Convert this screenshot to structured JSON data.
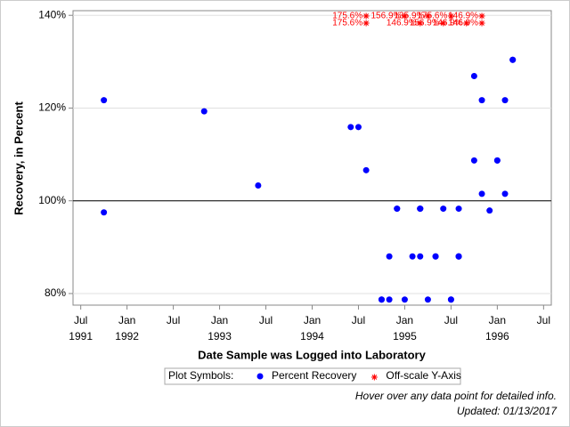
{
  "chart_data": {
    "type": "scatter",
    "ylabel": "Recovery, in Percent",
    "xlabel": "Date Sample was Logged into Laboratory",
    "xlim": [
      "1991-06",
      "1996-08"
    ],
    "xticks": [
      {
        "value": "1991-07",
        "label": "Jul\n1991"
      },
      {
        "value": "1992-01",
        "label": "Jan\n1992"
      },
      {
        "value": "1992-07",
        "label": "Jul"
      },
      {
        "value": "1993-01",
        "label": "Jan\n1993"
      },
      {
        "value": "1993-07",
        "label": "Jul"
      },
      {
        "value": "1994-01",
        "label": "Jan\n1994"
      },
      {
        "value": "1994-07",
        "label": "Jul"
      },
      {
        "value": "1995-01",
        "label": "Jan\n1995"
      },
      {
        "value": "1995-07",
        "label": "Jul"
      },
      {
        "value": "1996-01",
        "label": "Jan\n1996"
      },
      {
        "value": "1996-07",
        "label": "Jul"
      }
    ],
    "ylim": [
      77.5,
      141
    ],
    "yticks": [
      {
        "value": 80,
        "label": "80%"
      },
      {
        "value": 100,
        "label": "100%"
      },
      {
        "value": 120,
        "label": "120%"
      },
      {
        "value": 140,
        "label": "140%"
      }
    ],
    "grid": true,
    "refline": 100,
    "legend_title": "Plot Symbols:",
    "series": [
      {
        "name": "Percent Recovery",
        "color": "#0000ff",
        "marker": "circle",
        "x": [
          "1991-10",
          "1991-10",
          "1992-11",
          "1993-06",
          "1994-06",
          "1994-07",
          "1994-08",
          "1994-10",
          "1994-10",
          "1994-11",
          "1994-11",
          "1994-12",
          "1994-12",
          "1995-01",
          "1995-02",
          "1995-03",
          "1995-03",
          "1995-03",
          "1995-03",
          "1995-04",
          "1995-05",
          "1995-05",
          "1995-06",
          "1995-07",
          "1995-07",
          "1995-08",
          "1995-08",
          "1995-08",
          "1995-08",
          "1995-10",
          "1995-10",
          "1995-11",
          "1995-11",
          "1995-12",
          "1996-01",
          "1996-01",
          "1996-02",
          "1996-02",
          "1996-03",
          "1996-03"
        ],
        "values": [
          121.7,
          97.5,
          119.3,
          103.3,
          115.9,
          115.9,
          106.6,
          78.7,
          78.7,
          78.7,
          88,
          98.3,
          98.3,
          78.7,
          88,
          88,
          98.3,
          98.3,
          98.3,
          78.7,
          88,
          88,
          98.3,
          78.7,
          78.7,
          88,
          88,
          88,
          98.3,
          126.9,
          108.7,
          121.7,
          101.5,
          97.9,
          108.7,
          108.7,
          101.5,
          121.7,
          130.4,
          130.4
        ]
      },
      {
        "name": "Off-scale Y-Axis",
        "color": "#ff0000",
        "marker": "asterisk",
        "x": [
          "1994-08",
          "1994-08",
          "1995-01",
          "1995-03",
          "1995-04",
          "1995-06",
          "1995-07",
          "1995-09",
          "1995-11",
          "1995-11"
        ],
        "values": [
          175.6,
          175.6,
          156.9,
          146.9,
          135.9,
          156.9,
          175.6,
          146.9,
          146.9,
          146.9
        ],
        "value_labels": [
          "175.6%",
          "175.6%",
          "156.9%",
          "146.9%",
          "135.9%",
          "156.9%",
          "175.6%",
          "146.9%",
          "146.9%",
          "146.9%"
        ]
      }
    ],
    "footnotes": [
      "Hover over any data point for detailed info.",
      "Updated: 01/13/2017"
    ]
  }
}
